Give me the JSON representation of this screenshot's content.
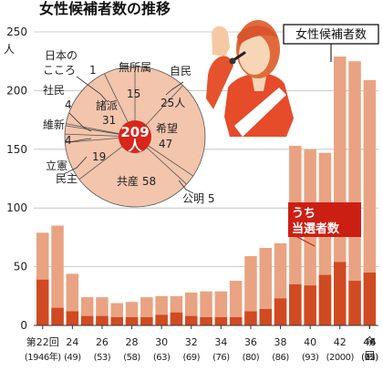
{
  "chart_data": [
    {
      "type": "bar",
      "title": "女性候補者数の推移",
      "ylabel": "人",
      "ylim": [
        0,
        250
      ],
      "y_ticks": [
        "0",
        "50",
        "100",
        "150",
        "200",
        "250"
      ],
      "series": [
        {
          "name": "女性候補者数",
          "color": "#e9a382",
          "values": [
            79,
            85,
            44,
            24,
            24,
            19,
            20,
            24,
            25,
            25,
            28,
            29,
            29,
            38,
            59,
            66,
            70,
            153,
            150,
            147,
            229,
            225,
            209
          ]
        },
        {
          "name": "うち当選者数",
          "color": "#d04a22",
          "values": [
            39,
            15,
            12,
            8,
            8,
            7,
            7,
            7,
            9,
            11,
            8,
            7,
            7,
            7,
            12,
            14,
            23,
            35,
            34,
            43,
            54,
            38,
            45
          ]
        }
      ],
      "x_labels": [
        {
          "top": "第22回",
          "bottom": "(1946年)"
        },
        {
          "top": "24",
          "bottom": "(49)"
        },
        {
          "top": "26",
          "bottom": "(53)"
        },
        {
          "top": "28",
          "bottom": "(58)"
        },
        {
          "top": "30",
          "bottom": "(63)"
        },
        {
          "top": "32",
          "bottom": "(69)"
        },
        {
          "top": "34",
          "bottom": "(76)"
        },
        {
          "top": "36",
          "bottom": "(80)"
        },
        {
          "top": "38",
          "bottom": "(86)"
        },
        {
          "top": "40",
          "bottom": "(93)"
        },
        {
          "top": "42",
          "bottom": "(2000)"
        },
        {
          "top": "44",
          "bottom": "(05)"
        },
        {
          "top": "46",
          "bottom": "(12)"
        },
        {
          "top": "今回",
          "bottom": ""
        }
      ],
      "legend": {
        "candidates": "女性候補者数",
        "elected_line1": "うち",
        "elected_line2": "当選者数"
      }
    },
    {
      "type": "pie",
      "center_value": "209",
      "center_unit": "人",
      "slices": [
        {
          "party": "自民",
          "value": 25,
          "label": "25人"
        },
        {
          "party": "希望",
          "value": 47,
          "label": "47"
        },
        {
          "party": "公明",
          "value": 5,
          "label": "公明 5"
        },
        {
          "party": "共産",
          "value": 58,
          "label": "共産 58"
        },
        {
          "party": "立憲民主",
          "value": 19,
          "label": "19"
        },
        {
          "party": "維新",
          "value": 4,
          "label": "4"
        },
        {
          "party": "社民",
          "value": 4,
          "label": "4"
        },
        {
          "party": "日本のこころ",
          "value": 1,
          "label": "1"
        },
        {
          "party": "諸派",
          "value": 31,
          "label": "31"
        },
        {
          "party": "無所属",
          "value": 15,
          "label": "15"
        }
      ],
      "outside_labels": {
        "jimin": "自民",
        "mushozoku": "無所属",
        "kokoro1": "日本の",
        "kokoro2": "こころ",
        "shamin": "社民",
        "ishin": "維新",
        "rikken1": "立憲",
        "rikken2": "民主",
        "shoha": "諸派",
        "kibo": "希望"
      }
    }
  ],
  "colors": {
    "candidates": "#e9a382",
    "elected": "#d04a22",
    "pie_fill": "#f2c5ac",
    "legend_box": "#cc1f14",
    "pie_center": "#d8261a"
  }
}
